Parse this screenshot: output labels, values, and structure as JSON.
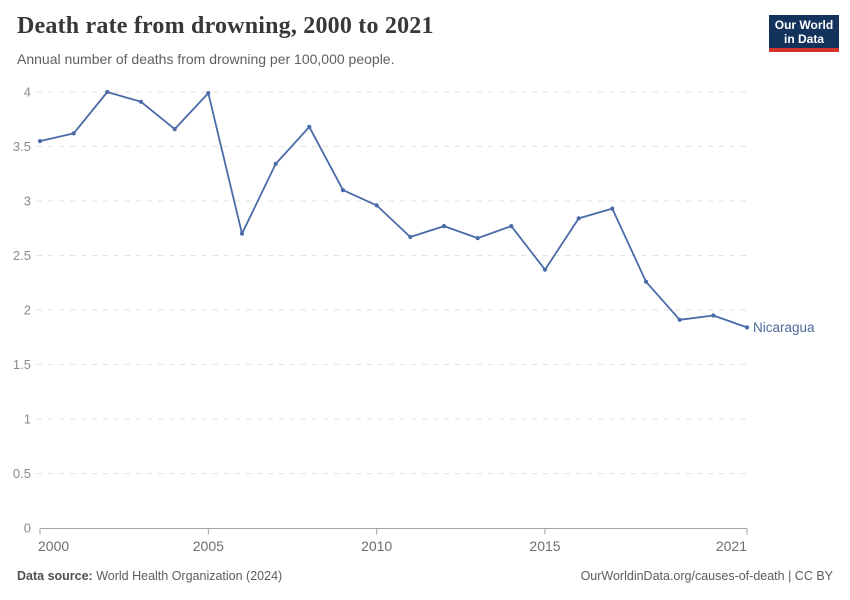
{
  "header": {
    "title": "Death rate from drowning, 2000 to 2021",
    "subtitle": "Annual number of deaths from drowning per 100,000 people.",
    "logo": {
      "line1": "Our World",
      "line2": "in Data"
    }
  },
  "chart_data": {
    "type": "line",
    "title": "Death rate from drowning, 2000 to 2021",
    "subtitle": "Annual number of deaths from drowning per 100,000 people.",
    "x": [
      2000,
      2001,
      2002,
      2003,
      2004,
      2005,
      2006,
      2007,
      2008,
      2009,
      2010,
      2011,
      2012,
      2013,
      2014,
      2015,
      2016,
      2017,
      2018,
      2019,
      2020,
      2021
    ],
    "series": [
      {
        "name": "Nicaragua",
        "values": [
          3.55,
          3.62,
          4.0,
          3.91,
          3.66,
          3.99,
          2.7,
          3.34,
          3.68,
          3.1,
          2.96,
          2.67,
          2.77,
          2.66,
          2.77,
          2.37,
          2.84,
          2.93,
          2.26,
          1.91,
          1.95,
          1.84
        ]
      }
    ],
    "xlim": [
      2000,
      2021
    ],
    "ylim": [
      0,
      4
    ],
    "yticks": [
      0,
      0.5,
      1,
      1.5,
      2,
      2.5,
      3,
      3.5,
      4
    ],
    "xticks": [
      2000,
      2005,
      2010,
      2015,
      2021
    ],
    "grid": "horizontal-dashed",
    "legend_position": "end-of-line-label",
    "colors": {
      "line": "#4a6ba8",
      "series_label": "#4c6a9c",
      "gridline": "#e2e2e2",
      "axis": "#a3a3a3",
      "ytick_label": "#8b8b8b",
      "xtick_label": "#6e6e6e"
    }
  },
  "footer": {
    "source_label": "Data source:",
    "source_text": " World Health Organization (2024)",
    "citation": "OurWorldinData.org/causes-of-death | CC BY"
  }
}
